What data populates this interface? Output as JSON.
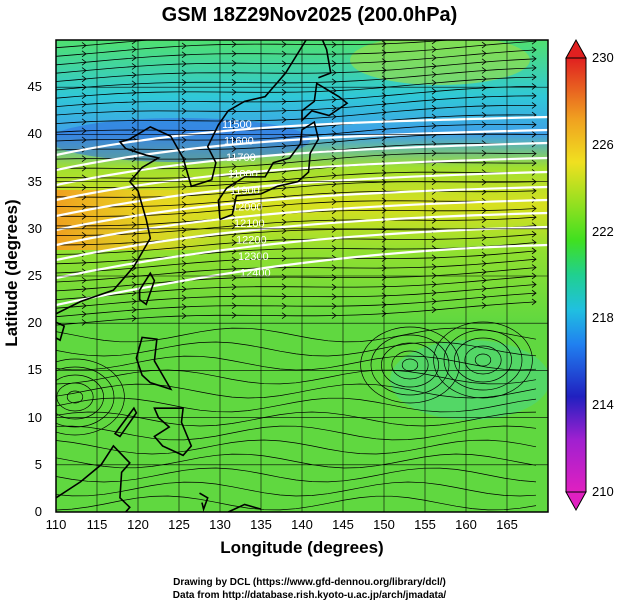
{
  "title": "GSM 18Z29Nov2025 (200.0hPa)",
  "xlabel": "Longitude (degrees)",
  "ylabel": "Latitude  (degrees)",
  "credits": {
    "line1": "Drawing by DCL (https://www.gfd-dennou.org/library/dcl/)",
    "line2": "Data from http://database.rish.kyoto-u.ac.jp/arch/jmadata/"
  },
  "map": {
    "lon_range": [
      110,
      170
    ],
    "lat_range": [
      0,
      50
    ],
    "x_ticks": [
      "110",
      "115",
      "120",
      "125",
      "130",
      "135",
      "140",
      "145",
      "150",
      "155",
      "160",
      "165"
    ],
    "y_ticks": [
      "0",
      "5",
      "10",
      "15",
      "20",
      "25",
      "30",
      "35",
      "40",
      "45"
    ]
  },
  "colorbar": {
    "range": [
      210,
      230
    ],
    "ticks": [
      "210",
      "214",
      "218",
      "222",
      "226",
      "230"
    ],
    "colors": [
      "#e020c0",
      "#2020c0",
      "#20a0f0",
      "#20d0a0",
      "#40e020",
      "#a0e020",
      "#f0e020",
      "#f08020",
      "#e02020"
    ]
  },
  "contour_labels": [
    "11500",
    "11600",
    "11700",
    "11800",
    "11900",
    "12000",
    "12100",
    "12200",
    "12300",
    "12400"
  ]
}
